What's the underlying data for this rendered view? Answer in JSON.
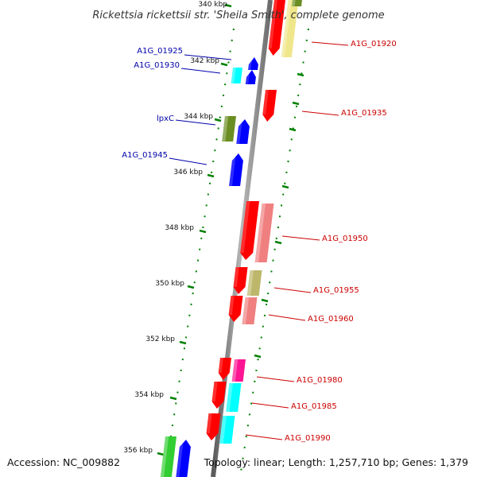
{
  "title": "Rickettsia rickettsii str. 'Sheila Smith', complete genome",
  "footer": {
    "accession": "Accession: NC_009882",
    "summary": "Topology: linear; Length: 1,257,710 bp; Genes: 1,379"
  },
  "ticks": [
    "340 kbp",
    "342 kbp",
    "344 kbp",
    "346 kbp",
    "348 kbp",
    "350 kbp",
    "352 kbp",
    "354 kbp",
    "356 kbp"
  ],
  "genes": [
    {
      "label": "A1G_01920",
      "strand": "forward",
      "color": "#ff0000"
    },
    {
      "label": "A1G_01925",
      "strand": "reverse",
      "color": "#0000ff"
    },
    {
      "label": "A1G_01930",
      "strand": "reverse",
      "color": "#00ffff"
    },
    {
      "label": "A1G_01935",
      "strand": "forward",
      "color": "#ff0000"
    },
    {
      "label": "lpxC",
      "strand": "reverse",
      "color": "#6b8e23"
    },
    {
      "label": "A1G_01945",
      "strand": "reverse",
      "color": "#0000ff"
    },
    {
      "label": "A1G_01950",
      "strand": "forward",
      "color": "#ff0000"
    },
    {
      "label": "A1G_01955",
      "strand": "forward",
      "color": "#ff0000"
    },
    {
      "label": "A1G_01960",
      "strand": "forward",
      "color": "#ff0000"
    },
    {
      "label": "A1G_01980",
      "strand": "forward",
      "color": "#ff0000"
    },
    {
      "label": "A1G_01985",
      "strand": "forward",
      "color": "#ff0000"
    },
    {
      "label": "A1G_01990",
      "strand": "forward",
      "color": "#ff0000"
    }
  ],
  "colors": {
    "backbone": "#8c8c8c",
    "tick": "#008000",
    "forward_label": "#cc0000",
    "reverse_label": "#0000aa",
    "cds": "#ff0000",
    "cds_pale": "#f08080",
    "cds_khaki": "#bdb76b",
    "cds_yellow": "#f0e68c",
    "cds_olive": "#6b8e23",
    "cds_blue": "#0000ff",
    "cds_cyan": "#00ffff",
    "cds_magenta": "#ff1493",
    "cds_green": "#32cd32"
  }
}
